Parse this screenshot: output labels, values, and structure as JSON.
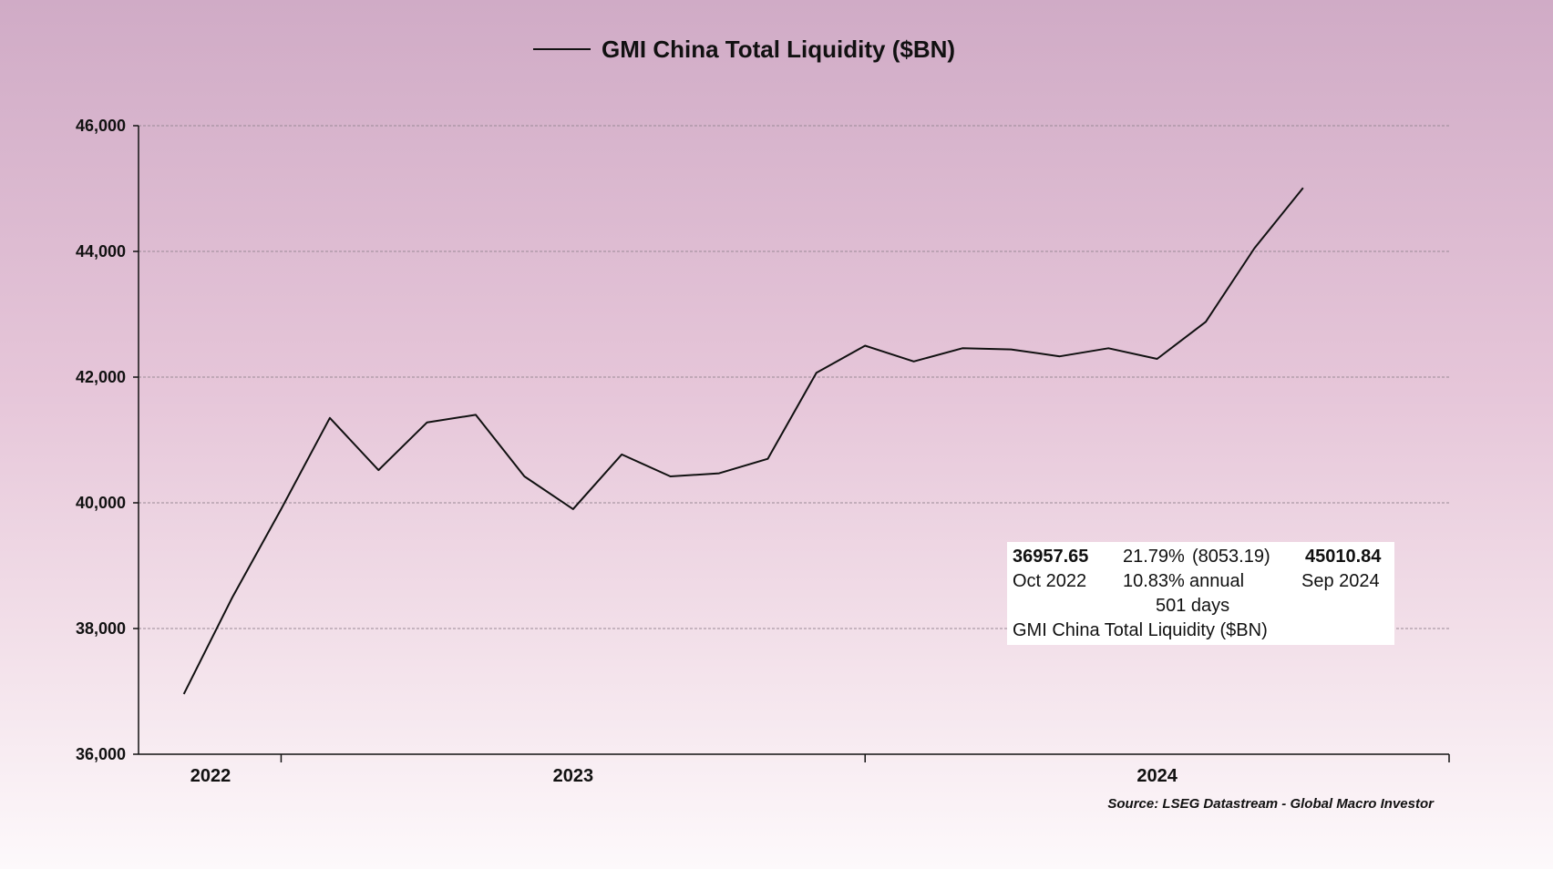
{
  "chart_data": {
    "type": "line",
    "legend": "GMI China Total Liquidity ($BN)",
    "series": [
      {
        "name": "GMI China Total Liquidity ($BN)",
        "values": [
          36957.65,
          38500,
          39900,
          41350,
          40520,
          41280,
          41400,
          40420,
          39900,
          40770,
          40420,
          40470,
          40700,
          42070,
          42500,
          42250,
          42460,
          42440,
          42330,
          42460,
          42290,
          42880,
          44050,
          45010.84
        ]
      }
    ],
    "y_ticks": [
      36000,
      38000,
      40000,
      42000,
      44000,
      46000
    ],
    "y_tick_labels": [
      "36,000",
      "38,000",
      "40,000",
      "42,000",
      "44,000",
      "46,000"
    ],
    "ylim": [
      36000,
      46000
    ],
    "x_labels": [
      {
        "label": "2022",
        "index": 0.55
      },
      {
        "label": "2023",
        "index": 8.0
      },
      {
        "label": "2024",
        "index": 20.0
      }
    ],
    "x_major_ticks": [
      2.0,
      14.0,
      26.0
    ],
    "xlim": [
      -0.93,
      26.0
    ],
    "grid": true,
    "source": "Source: LSEG Datastream - Global Macro Investor",
    "annotation": {
      "start_value": "36957.65",
      "start_date": "Oct 2022",
      "change_pct": "21.79%",
      "change_abs": "(8053.19)",
      "annual_pct": "10.83%",
      "annual_label": "annual",
      "days": "501 days",
      "end_value": "45010.84",
      "end_date": "Sep 2024",
      "series_name": "GMI China Total Liquidity ($BN)"
    },
    "colors": {
      "line": "#111111",
      "grid": "#9a8a96",
      "axis": "#111111"
    }
  }
}
